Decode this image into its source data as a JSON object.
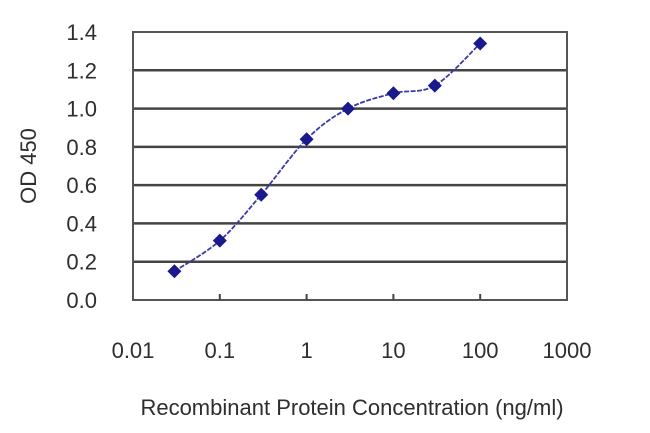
{
  "chart_data": {
    "type": "line",
    "title": "",
    "xlabel": "Recombinant Protein Concentration (ng/ml)",
    "ylabel": "OD 450",
    "xscale": "log",
    "xlim": [
      0.01,
      1000
    ],
    "ylim": [
      0.0,
      1.4
    ],
    "x_ticks": [
      "0.01",
      "0.1",
      "1",
      "10",
      "100",
      "1000"
    ],
    "y_ticks": [
      "0.0",
      "0.2",
      "0.4",
      "0.6",
      "0.8",
      "1.0",
      "1.2",
      "1.4"
    ],
    "grid": {
      "horizontal": true,
      "vertical": false
    },
    "legend": null,
    "series": [
      {
        "name": "OD 450",
        "color": "#1a1a8c",
        "marker": "diamond",
        "smooth": true,
        "x": [
          0.03,
          0.1,
          0.3,
          1,
          3,
          10,
          30,
          100
        ],
        "values": [
          0.15,
          0.31,
          0.55,
          0.84,
          1.0,
          1.08,
          1.12,
          1.34
        ]
      }
    ]
  },
  "labels": {
    "y_axis_title": "OD 450",
    "x_axis_title": "Recombinant Protein Concentration (ng/ml)"
  }
}
